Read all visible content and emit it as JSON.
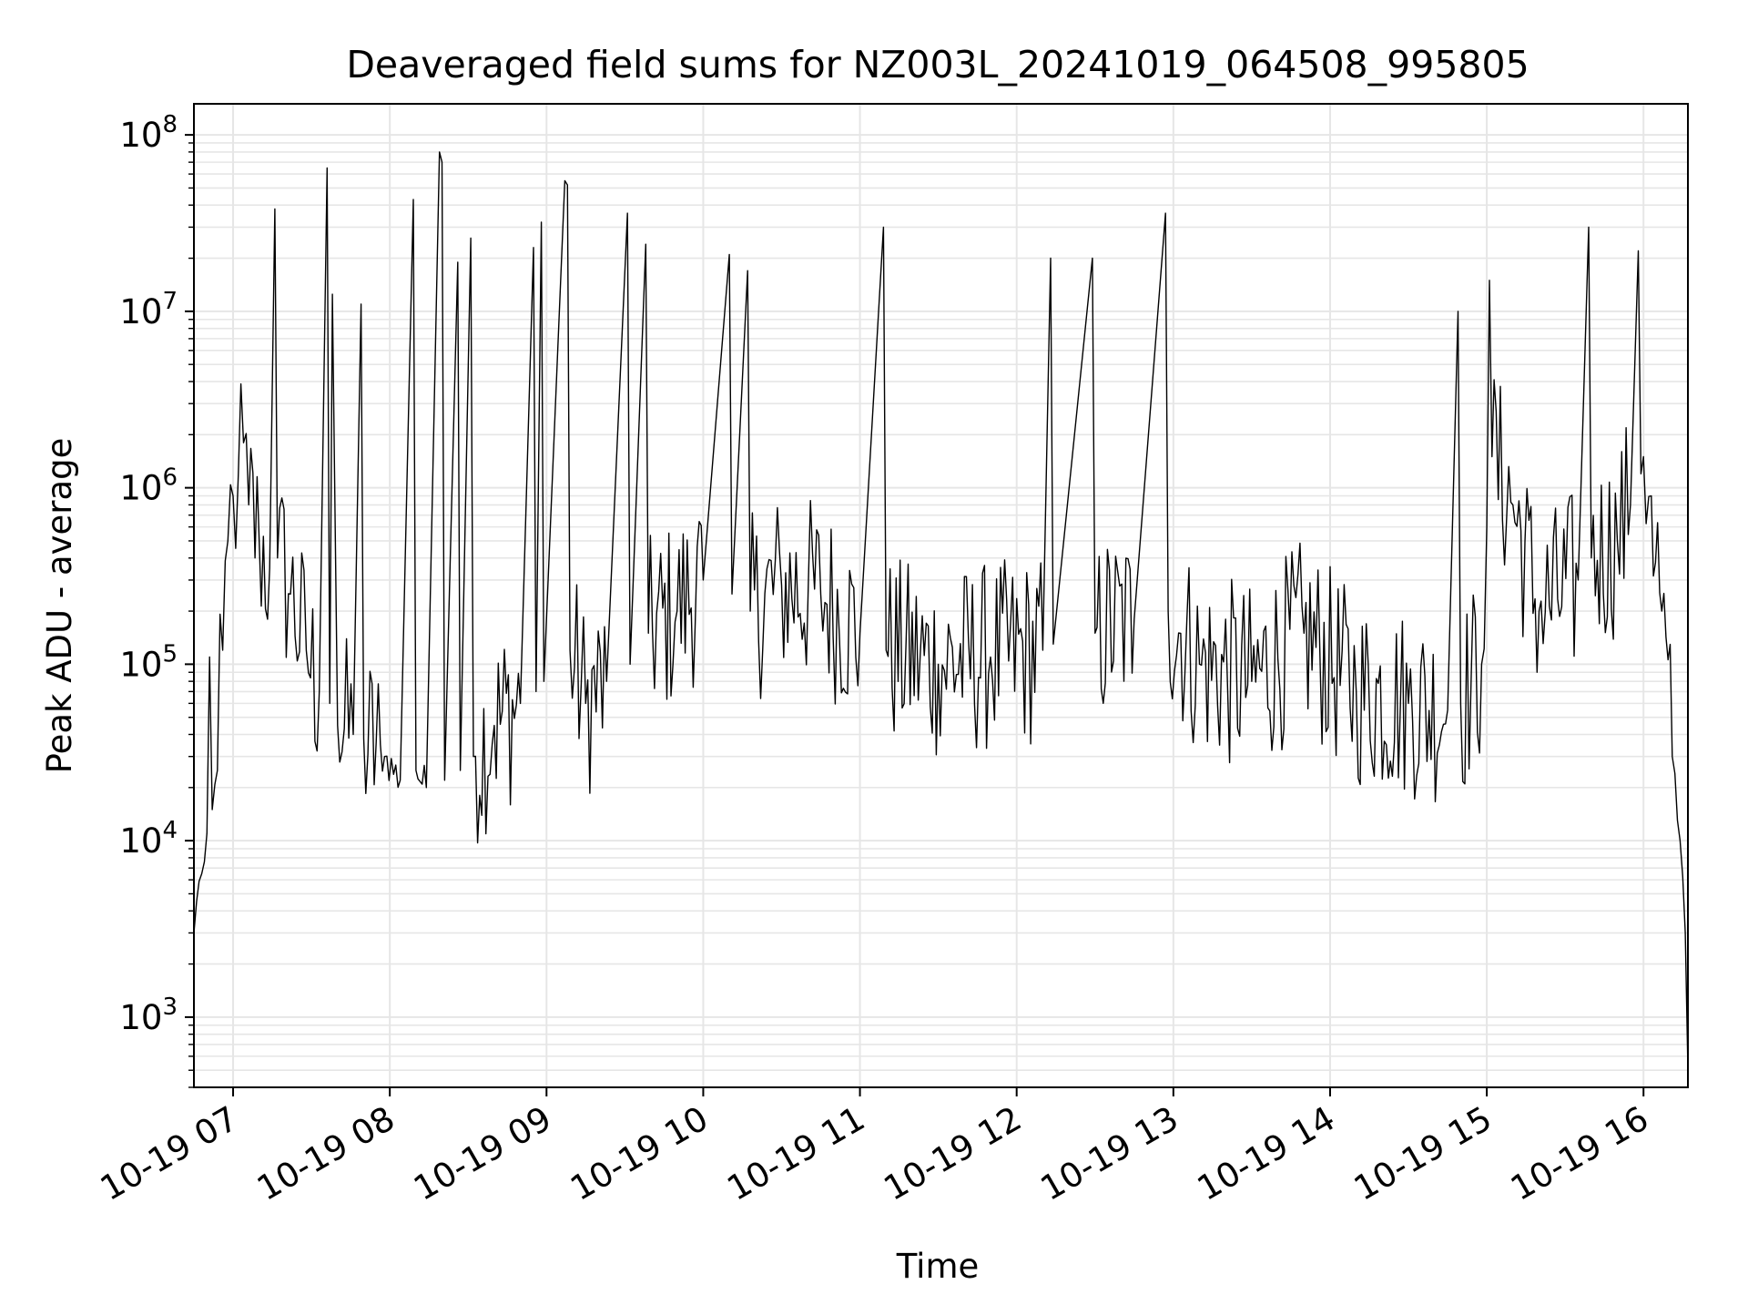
{
  "chart_data": {
    "type": "line",
    "title": "Deaveraged field sums for NZ003L_20241019_064508_995805",
    "xlabel": "Time",
    "ylabel": "Peak ADU - average",
    "y_scale": "log",
    "ylim": [
      400,
      150000000
    ],
    "xlim": [
      "2024-10-19 06:45",
      "2024-10-19 16:17"
    ],
    "x_ticks": [
      "2024-10-19 07:00",
      "2024-10-19 08:00",
      "2024-10-19 09:00",
      "2024-10-19 10:00",
      "2024-10-19 11:00",
      "2024-10-19 12:00",
      "2024-10-19 13:00",
      "2024-10-19 14:00",
      "2024-10-19 15:00",
      "2024-10-19 16:00"
    ],
    "x_tick_labels": [
      "10-19 07",
      "10-19 08",
      "10-19 09",
      "10-19 10",
      "10-19 11",
      "10-19 12",
      "10-19 13",
      "10-19 14",
      "10-19 15",
      "10-19 16"
    ],
    "y_tick_labels": [
      {
        "value": 1000,
        "mantissa": "10",
        "exponent": "3"
      },
      {
        "value": 10000,
        "mantissa": "10",
        "exponent": "4"
      },
      {
        "value": 100000,
        "mantissa": "10",
        "exponent": "5"
      },
      {
        "value": 1000000,
        "mantissa": "10",
        "exponent": "6"
      },
      {
        "value": 10000000,
        "mantissa": "10",
        "exponent": "7"
      },
      {
        "value": 100000000,
        "mantissa": "10",
        "exponent": "8"
      }
    ],
    "grid": true,
    "line_color": "#000000",
    "grid_color": "#e6e6e6",
    "series": [
      {
        "values_description_free": true,
        "points": [
          [
            "2024-10-19 06:45",
            3000
          ],
          [
            "2024-10-19 06:46",
            4500
          ],
          [
            "2024-10-19 06:48",
            6500
          ],
          [
            "2024-10-19 06:50",
            11000
          ],
          [
            "2024-10-19 06:51",
            110000
          ],
          [
            "2024-10-19 06:52",
            15000
          ],
          [
            "2024-10-19 06:54",
            25000
          ],
          [
            "2024-10-19 06:56",
            120000
          ],
          [
            "2024-10-19 06:58",
            500000
          ],
          [
            "2024-10-19 07:00",
            900000
          ],
          [
            "2024-10-19 07:02",
            1200000
          ],
          [
            "2024-10-19 07:04",
            1800000
          ],
          [
            "2024-10-19 07:06",
            800000
          ],
          [
            "2024-10-19 07:10",
            500000
          ],
          [
            "2024-10-19 07:14",
            350000
          ],
          [
            "2024-10-19 07:16",
            38000000
          ],
          [
            "2024-10-19 07:17",
            400000
          ],
          [
            "2024-10-19 07:22",
            250000
          ],
          [
            "2024-10-19 07:28",
            120000
          ],
          [
            "2024-10-19 07:33",
            70000
          ],
          [
            "2024-10-19 07:36",
            65000000
          ],
          [
            "2024-10-19 07:37",
            60000
          ],
          [
            "2024-10-19 07:38",
            12500000
          ],
          [
            "2024-10-19 07:40",
            45000
          ],
          [
            "2024-10-19 07:46",
            40000
          ],
          [
            "2024-10-19 07:49",
            11000000
          ],
          [
            "2024-10-19 07:50",
            38000
          ],
          [
            "2024-10-19 07:58",
            30000
          ],
          [
            "2024-10-19 08:04",
            22000
          ],
          [
            "2024-10-19 08:09",
            43000000
          ],
          [
            "2024-10-19 08:10",
            25000
          ],
          [
            "2024-10-19 08:14",
            20000
          ],
          [
            "2024-10-19 08:19",
            80000000
          ],
          [
            "2024-10-19 08:20",
            70000000
          ],
          [
            "2024-10-19 08:21",
            22000
          ],
          [
            "2024-10-19 08:26",
            19000000
          ],
          [
            "2024-10-19 08:27",
            25000
          ],
          [
            "2024-10-19 08:31",
            26000000
          ],
          [
            "2024-10-19 08:32",
            30000
          ],
          [
            "2024-10-19 08:40",
            45000
          ],
          [
            "2024-10-19 08:50",
            60000
          ],
          [
            "2024-10-19 08:55",
            23000000
          ],
          [
            "2024-10-19 08:56",
            70000
          ],
          [
            "2024-10-19 08:58",
            32000000
          ],
          [
            "2024-10-19 08:59",
            80000
          ],
          [
            "2024-10-19 09:07",
            55000000
          ],
          [
            "2024-10-19 09:08",
            52000000
          ],
          [
            "2024-10-19 09:09",
            120000
          ],
          [
            "2024-10-19 09:15",
            60000
          ],
          [
            "2024-10-19 09:23",
            80000
          ],
          [
            "2024-10-19 09:31",
            36000000
          ],
          [
            "2024-10-19 09:32",
            100000
          ],
          [
            "2024-10-19 09:38",
            24000000
          ],
          [
            "2024-10-19 09:39",
            150000
          ],
          [
            "2024-10-19 09:50",
            200000
          ],
          [
            "2024-10-19 10:00",
            300000
          ],
          [
            "2024-10-19 10:10",
            21000000
          ],
          [
            "2024-10-19 10:11",
            250000
          ],
          [
            "2024-10-19 10:17",
            17000000
          ],
          [
            "2024-10-19 10:18",
            200000
          ],
          [
            "2024-10-19 10:30",
            280000
          ],
          [
            "2024-10-19 10:45",
            250000
          ],
          [
            "2024-10-19 11:00",
            150000
          ],
          [
            "2024-10-19 11:09",
            30000000
          ],
          [
            "2024-10-19 11:10",
            120000
          ],
          [
            "2024-10-19 11:30",
            100000
          ],
          [
            "2024-10-19 11:50",
            110000
          ],
          [
            "2024-10-19 12:10",
            120000
          ],
          [
            "2024-10-19 12:13",
            20000000
          ],
          [
            "2024-10-19 12:14",
            130000
          ],
          [
            "2024-10-19 12:29",
            20000000
          ],
          [
            "2024-10-19 12:30",
            150000
          ],
          [
            "2024-10-19 12:45",
            180000
          ],
          [
            "2024-10-19 12:57",
            36000000
          ],
          [
            "2024-10-19 12:58",
            200000
          ],
          [
            "2024-10-19 13:10",
            100000
          ],
          [
            "2024-10-19 13:30",
            80000
          ],
          [
            "2024-10-19 13:50",
            150000
          ],
          [
            "2024-10-19 14:10",
            70000
          ],
          [
            "2024-10-19 14:30",
            60000
          ],
          [
            "2024-10-19 14:45",
            55000
          ],
          [
            "2024-10-19 14:49",
            10000000
          ],
          [
            "2024-10-19 14:50",
            60000
          ],
          [
            "2024-10-19 14:58",
            100000
          ],
          [
            "2024-10-19 15:00",
            600000
          ],
          [
            "2024-10-19 15:01",
            15000000
          ],
          [
            "2024-10-19 15:02",
            1500000
          ],
          [
            "2024-10-19 15:10",
            800000
          ],
          [
            "2024-10-19 15:20",
            200000
          ],
          [
            "2024-10-19 15:35",
            300000
          ],
          [
            "2024-10-19 15:39",
            30000000
          ],
          [
            "2024-10-19 15:40",
            400000
          ],
          [
            "2024-10-19 15:50",
            500000
          ],
          [
            "2024-10-19 15:55",
            800000
          ],
          [
            "2024-10-19 15:58",
            22000000
          ],
          [
            "2024-10-19 15:59",
            1200000
          ],
          [
            "2024-10-19 16:00",
            1500000
          ],
          [
            "2024-10-19 16:03",
            900000
          ],
          [
            "2024-10-19 16:07",
            200000
          ],
          [
            "2024-10-19 16:11",
            30000
          ],
          [
            "2024-10-19 16:14",
            10000
          ],
          [
            "2024-10-19 16:16",
            3000
          ],
          [
            "2024-10-19 16:17",
            500
          ]
        ]
      }
    ]
  }
}
